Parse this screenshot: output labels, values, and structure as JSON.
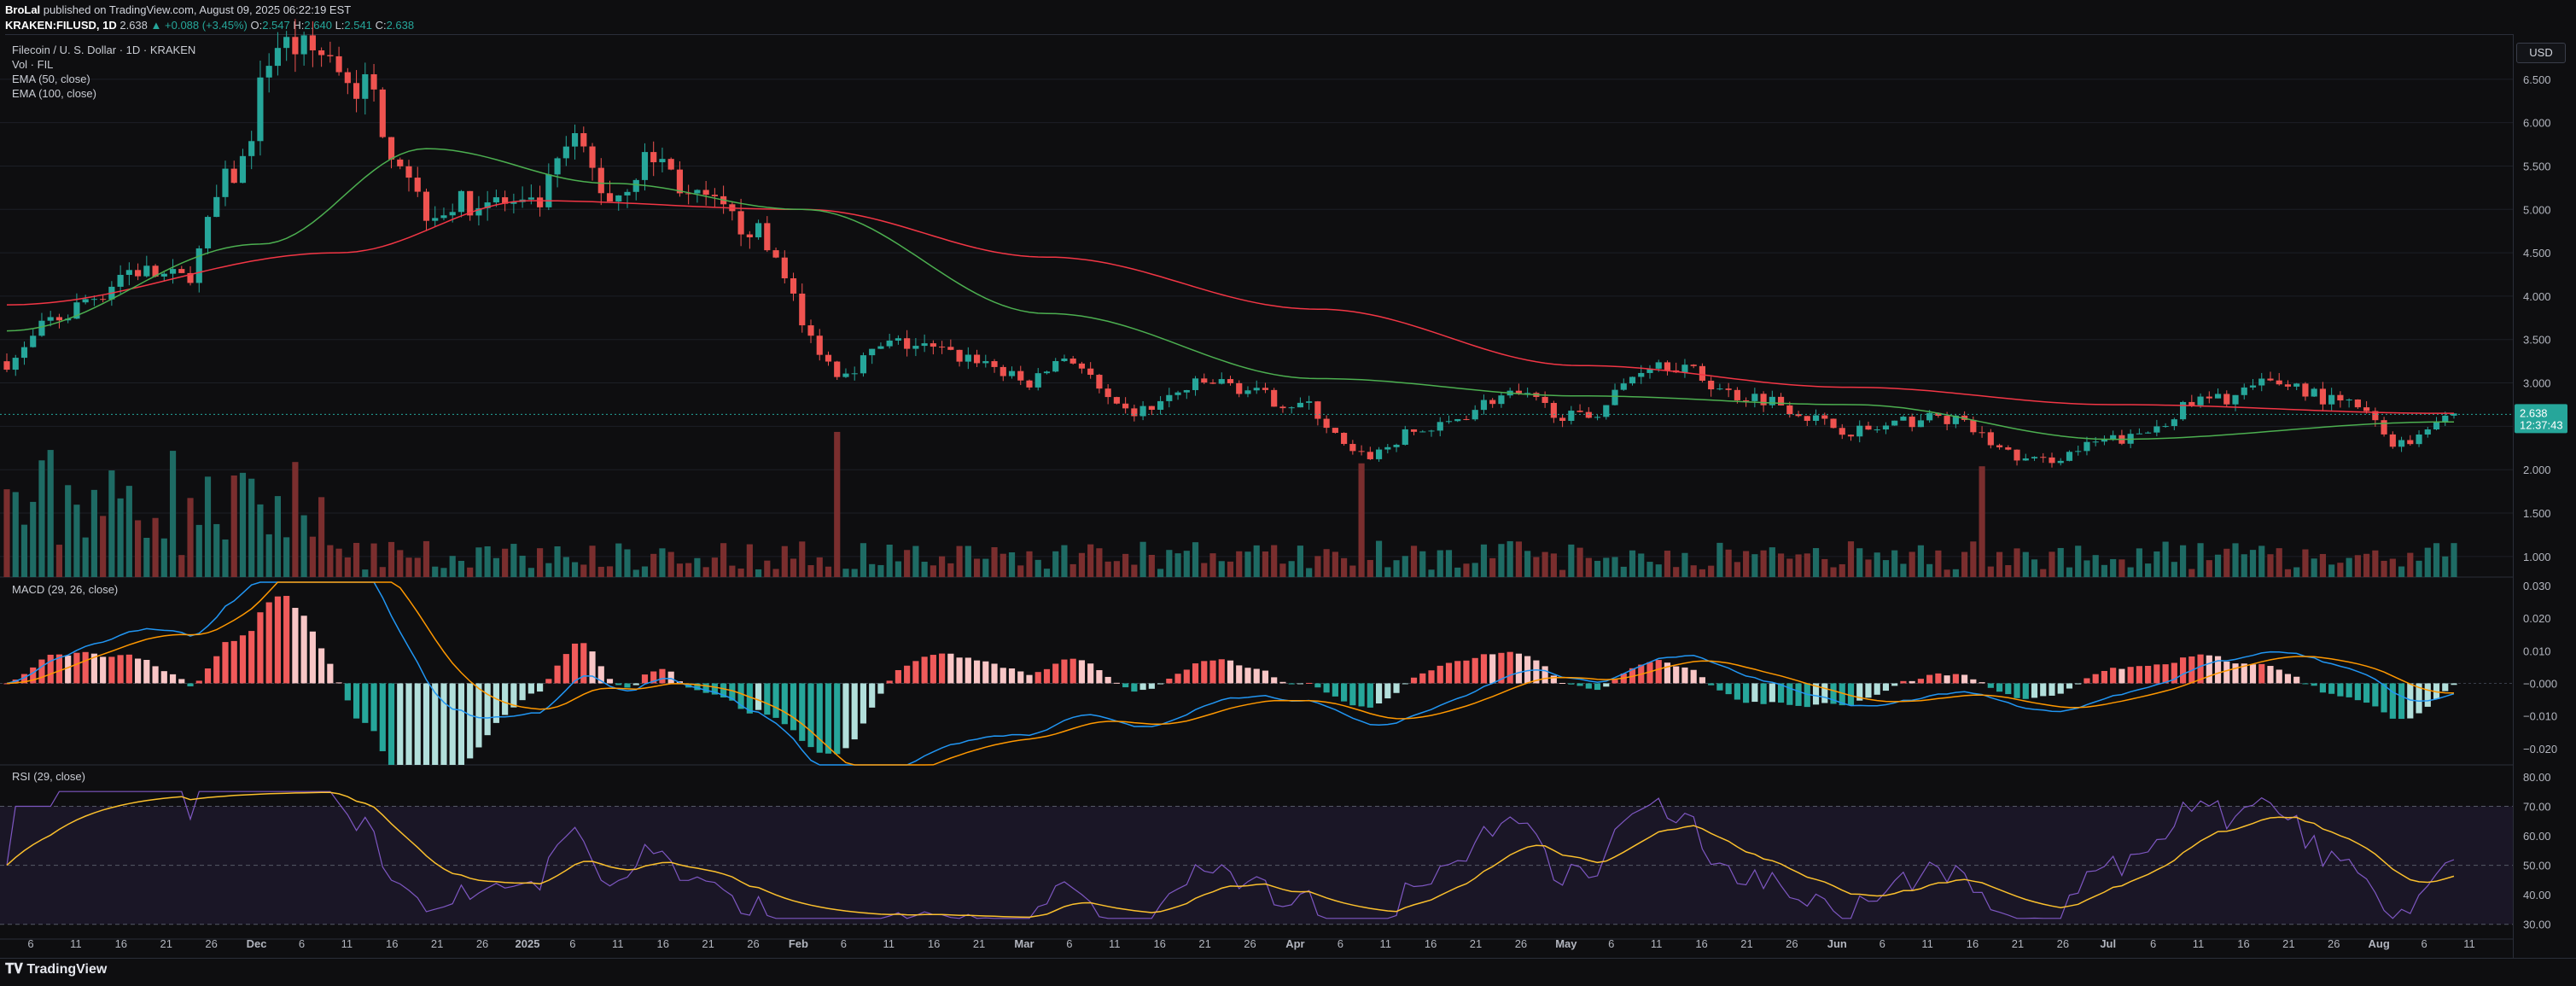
{
  "header": {
    "author": "BroLal",
    "published": "published on TradingView.com, August 09, 2025 06:22:19 EST",
    "symbol": "KRAKEN:FILUSD, 1D",
    "last": "2.638",
    "change": "▲ +0.088 (+3.45%)",
    "o_label": "O:",
    "o_value": "2.547",
    "h_label": "H:",
    "h_value": "2.640",
    "l_label": "L:",
    "l_value": "2.541",
    "c_label": "C:",
    "c_value": "2.638"
  },
  "legend": {
    "title": "Filecoin / U. S. Dollar · 1D · KRAKEN",
    "vol": "Vol · FIL",
    "ema50": "EMA (50, close)",
    "ema100": "EMA (100, close)"
  },
  "panes": {
    "macd_label": "MACD (29, 26, close)",
    "rsi_label": "RSI (29, close)"
  },
  "axis": {
    "currency": "USD",
    "price_ticks": [
      "6.500",
      "6.000",
      "5.500",
      "5.000",
      "4.500",
      "4.000",
      "3.500",
      "3.000",
      "2.500",
      "2.000",
      "1.500",
      "1.000"
    ],
    "macd_ticks": [
      "0.030",
      "0.020",
      "0.010",
      "−0.000",
      "−0.010",
      "−0.020"
    ],
    "rsi_ticks": [
      "80.00",
      "70.00",
      "60.00",
      "50.00",
      "40.00",
      "30.00"
    ],
    "last_price": "2.638",
    "countdown": "12:37:43",
    "x_ticks": [
      "6",
      "11",
      "16",
      "21",
      "26",
      "Dec",
      "6",
      "11",
      "16",
      "21",
      "26",
      "2025",
      "6",
      "11",
      "16",
      "21",
      "26",
      "Feb",
      "6",
      "11",
      "16",
      "21",
      "Mar",
      "6",
      "11",
      "16",
      "21",
      "26",
      "Apr",
      "6",
      "11",
      "16",
      "21",
      "26",
      "May",
      "6",
      "11",
      "16",
      "21",
      "26",
      "Jun",
      "6",
      "11",
      "16",
      "21",
      "26",
      "Jul",
      "6",
      "11",
      "16",
      "21",
      "26",
      "Aug",
      "6",
      "11"
    ]
  },
  "colors": {
    "up": "#26a69a",
    "down": "#ef5350",
    "ema50": "#4caf50",
    "ema100": "#f23645",
    "macd": "#2196f3",
    "signal": "#ff9800",
    "rsi": "#7e57c2",
    "rsi_ma": "#fbc02d"
  },
  "footer": {
    "brand": "TradingView"
  },
  "chart_data": {
    "type": "candlestick",
    "symbol": "FIL/USD",
    "interval": "1D",
    "y_range": [
      0.9,
      7.0
    ],
    "anchors": [
      {
        "x": "Nov 2",
        "close": 3.25
      },
      {
        "x": "Nov 8",
        "close": 3.75
      },
      {
        "x": "Nov 12",
        "close": 4.0
      },
      {
        "x": "Nov 16",
        "close": 4.3
      },
      {
        "x": "Nov 22",
        "close": 4.2
      },
      {
        "x": "Nov 28",
        "close": 5.4
      },
      {
        "x": "Dec 3",
        "close": 6.9
      },
      {
        "x": "Dec 8",
        "close": 6.8
      },
      {
        "x": "Dec 13",
        "close": 6.4
      },
      {
        "x": "Dec 17",
        "close": 5.6
      },
      {
        "x": "Dec 20",
        "close": 5.0
      },
      {
        "x": "Dec 27",
        "close": 5.1
      },
      {
        "x": "Jan 1",
        "close": 5.0
      },
      {
        "x": "Jan 6",
        "close": 5.75
      },
      {
        "x": "Jan 10",
        "close": 5.15
      },
      {
        "x": "Jan 15",
        "close": 5.6
      },
      {
        "x": "Jan 20",
        "close": 5.1
      },
      {
        "x": "Jan 26",
        "close": 4.8
      },
      {
        "x": "Jan 29",
        "close": 4.45
      },
      {
        "x": "Feb 2",
        "close": 3.5
      },
      {
        "x": "Feb 5",
        "close": 3.15
      },
      {
        "x": "Feb 12",
        "close": 3.45
      },
      {
        "x": "Feb 20",
        "close": 3.3
      },
      {
        "x": "Feb 27",
        "close": 3.0
      },
      {
        "x": "Mar 3",
        "close": 3.3
      },
      {
        "x": "Mar 10",
        "close": 2.65
      },
      {
        "x": "Mar 20",
        "close": 3.0
      },
      {
        "x": "Mar 30",
        "close": 2.75
      },
      {
        "x": "Apr 6",
        "close": 2.15
      },
      {
        "x": "Apr 13",
        "close": 2.45
      },
      {
        "x": "Apr 23",
        "close": 2.85
      },
      {
        "x": "May 1",
        "close": 2.6
      },
      {
        "x": "May 10",
        "close": 3.25
      },
      {
        "x": "May 20",
        "close": 2.85
      },
      {
        "x": "Jun 2",
        "close": 2.45
      },
      {
        "x": "Jun 11",
        "close": 2.6
      },
      {
        "x": "Jun 22",
        "close": 2.1
      },
      {
        "x": "Jul 2",
        "close": 2.35
      },
      {
        "x": "Jul 12",
        "close": 2.8
      },
      {
        "x": "Jul 20",
        "close": 3.0
      },
      {
        "x": "Jul 28",
        "close": 2.75
      },
      {
        "x": "Aug 3",
        "close": 2.3
      },
      {
        "x": "Aug 8",
        "close": 2.638
      }
    ],
    "ema50_anchors": [
      {
        "x": "Nov 2",
        "value": 3.6
      },
      {
        "x": "Dec 1",
        "value": 4.6
      },
      {
        "x": "Dec 20",
        "value": 5.7
      },
      {
        "x": "Jan 10",
        "value": 5.3
      },
      {
        "x": "Feb 1",
        "value": 5.0
      },
      {
        "x": "Mar 1",
        "value": 3.8
      },
      {
        "x": "Apr 1",
        "value": 3.05
      },
      {
        "x": "May 1",
        "value": 2.85
      },
      {
        "x": "Jun 1",
        "value": 2.75
      },
      {
        "x": "Jul 1",
        "value": 2.35
      },
      {
        "x": "Aug 8",
        "value": 2.55
      }
    ],
    "ema100_anchors": [
      {
        "x": "Nov 2",
        "value": 3.9
      },
      {
        "x": "Dec 10",
        "value": 4.5
      },
      {
        "x": "Jan 1",
        "value": 5.1
      },
      {
        "x": "Feb 1",
        "value": 5.0
      },
      {
        "x": "Mar 1",
        "value": 4.45
      },
      {
        "x": "Apr 1",
        "value": 3.85
      },
      {
        "x": "May 1",
        "value": 3.2
      },
      {
        "x": "Jun 1",
        "value": 2.95
      },
      {
        "x": "Jul 1",
        "value": 2.75
      },
      {
        "x": "Aug 8",
        "value": 2.65
      }
    ],
    "macd_range": [
      -0.025,
      0.031
    ],
    "rsi_range": [
      25,
      82
    ],
    "rsi_bands": [
      70,
      50,
      30
    ]
  }
}
